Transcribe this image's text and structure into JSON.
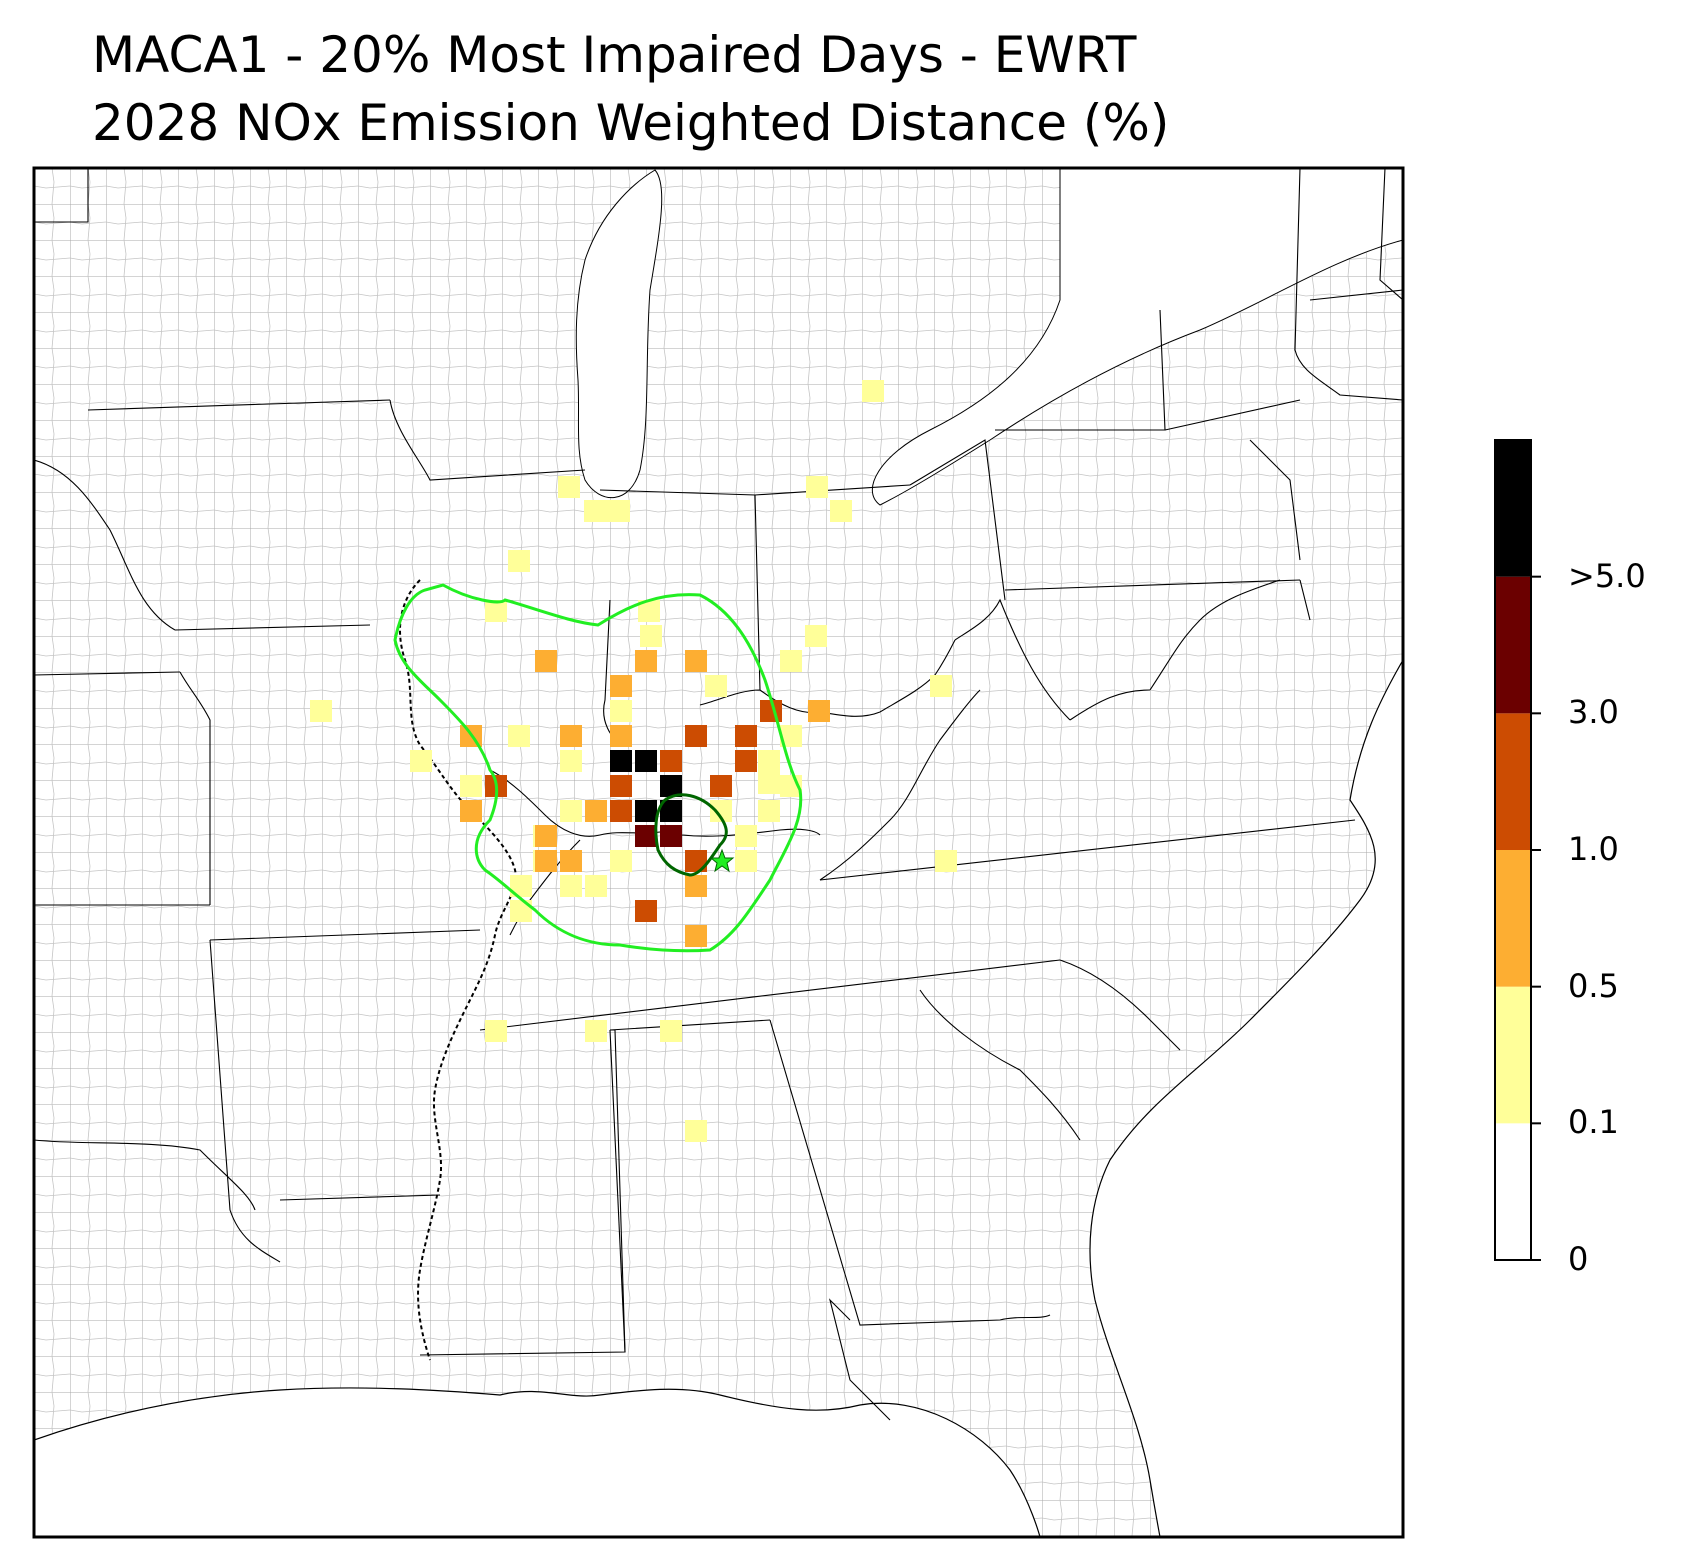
{
  "title_line1": "MACA1 - 20% Most Impaired Days - EWRT",
  "title_line2": "2028 NOx Emission Weighted Distance (%)",
  "colorbar": {
    "bins": [
      {
        "lower": "0",
        "upper": "0.1",
        "color": "#ffffff"
      },
      {
        "lower": "0.1",
        "upper": "0.5",
        "color": "#ffff99"
      },
      {
        "lower": "0.5",
        "upper": "1.0",
        "color": "#fdae32"
      },
      {
        "lower": "1.0",
        "upper": "3.0",
        "color": "#cc4c02"
      },
      {
        "lower": "3.0",
        "upper": ">5.0",
        "color": "#6b0000"
      },
      {
        "lower": ">5.0",
        "upper": "",
        "color": "#000000"
      }
    ],
    "tick_labels": [
      "0",
      "0.1",
      "0.5",
      "1.0",
      "3.0",
      ">5.0"
    ]
  },
  "colors": {
    "outer_contour": "#22ee22",
    "inner_contour": "#006600",
    "county_lines": "#a0a0a0",
    "state_lines": "#000000",
    "site_marker": "#22ee22"
  },
  "marker": {
    "icon": "star-icon"
  }
}
